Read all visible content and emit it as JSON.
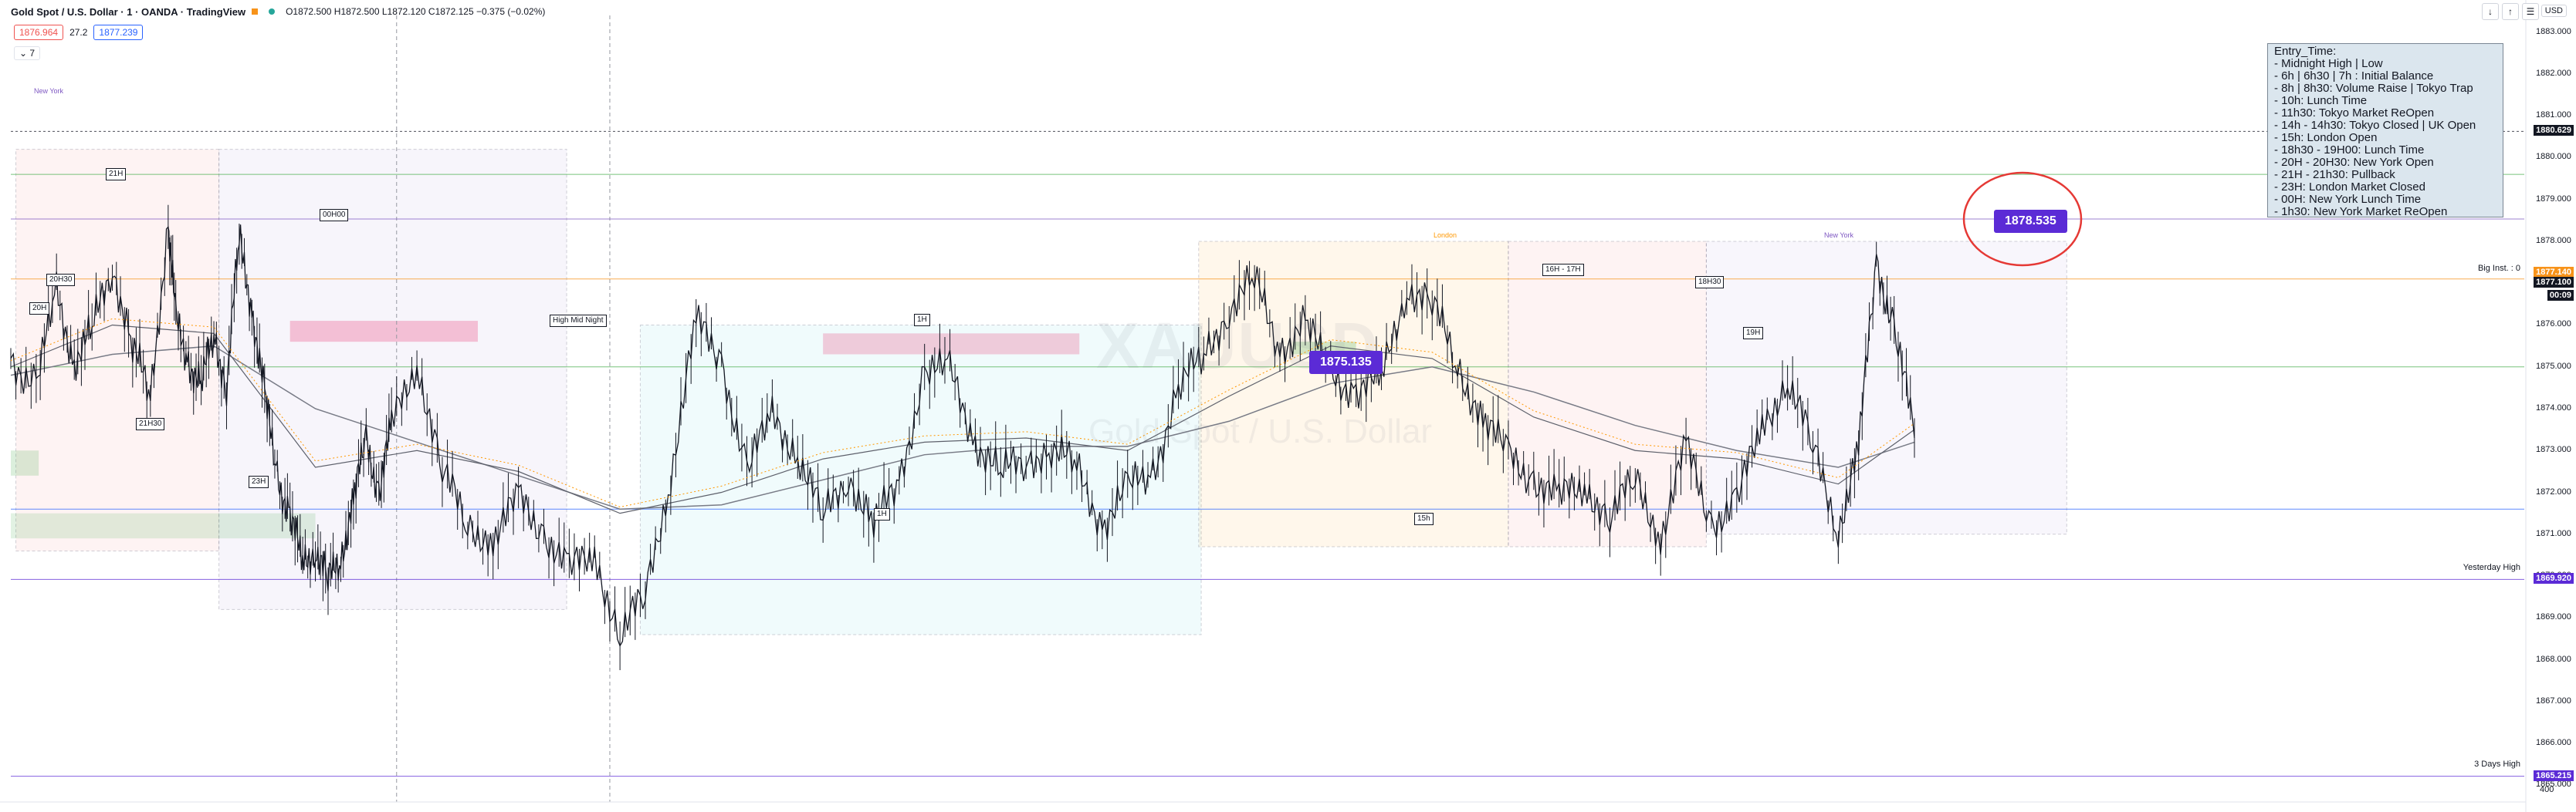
{
  "header": {
    "title": "Gold Spot / U.S. Dollar · 1 · OANDA · TradingView",
    "ohlc": "O1872.500 H1872.500 L1872.120 C1872.125 −0.375 (−0.02%)",
    "sell_price": "1876.964",
    "spread": "27.2",
    "buy_price": "1877.239",
    "indicators_toggle": "7",
    "currency": "USD",
    "buttons": [
      "↓",
      "↑",
      "☰"
    ]
  },
  "watermark": {
    "symbol": "XAUUSD",
    "name": "Gold Spot / U.S. Dollar"
  },
  "legend": {
    "lines": [
      "Entry_Time:",
      "- Midnight High | Low",
      "- 6h | 6h30 | 7h : Initial Balance",
      "- 8h | 8h30: Volume Raise | Tokyo Trap",
      "- 10h: Lunch Time",
      "- 11h30: Tokyo Market ReOpen",
      "- 14h - 14h30: Tokyo Closed | UK Open",
      "- 15h: London Open",
      "- 18h30 - 19H00: Lunch Time",
      "- 20H - 20H30: New York Open",
      "- 21H - 21h30: Pullback",
      "- 23H: London Market Closed",
      "- 00H: New York Lunch Time",
      "- 1h30: New York Market ReOpen"
    ]
  },
  "annotations": {
    "price_1878": "1878.535",
    "price_1875": "1875.135",
    "session_labels": [
      "21H",
      "20H30",
      "20H",
      "21H30",
      "23H",
      "00H00",
      "High Mid Night",
      "1H",
      "1H",
      "15h",
      "16H - 17H",
      "18H30",
      "19H"
    ],
    "session_titles": [
      "New York",
      "London",
      "New York"
    ]
  },
  "price_axis": {
    "ticks": [
      "1883.000",
      "1882.000",
      "1881.000",
      "1880.000",
      "1879.000",
      "1878.000",
      "1877.000",
      "1876.000",
      "1875.000",
      "1874.000",
      "1873.000",
      "1872.000",
      "1871.000",
      "1870.000",
      "1869.000",
      "1868.000",
      "1867.000",
      "1866.000",
      "1865.000"
    ],
    "labels": [
      {
        "text": "1880.629",
        "color": "#131722"
      },
      {
        "text": "1877.140",
        "color": "#f7931a"
      },
      {
        "text": "1877.100",
        "color": "#131722"
      },
      {
        "text": "00:09",
        "color": "#131722"
      },
      {
        "text": "1869.920",
        "color": "#5b2bd6"
      },
      {
        "text": "1865.215",
        "color": "#5b2bd6"
      }
    ],
    "line_names": [
      "Big Inst. : 0",
      "Yesterday High",
      "3 Days High"
    ],
    "bottom": "400"
  },
  "chart_data": {
    "type": "line",
    "title": "Gold Spot / U.S. Dollar · 1 · OANDA",
    "xlabel": "",
    "ylabel": "",
    "ylim": [
      1864.6,
      1883.4
    ],
    "x_range": [
      0,
      1000
    ],
    "price_series": {
      "x": [
        0,
        10,
        18,
        25,
        32,
        40,
        48,
        55,
        62,
        65,
        70,
        75,
        80,
        85,
        90,
        95,
        100,
        105,
        110,
        115,
        120,
        125,
        130,
        135,
        140,
        145,
        150,
        160,
        170,
        180,
        190,
        200,
        210,
        220,
        230,
        240,
        250,
        260,
        270,
        280,
        290,
        300,
        310,
        320,
        330,
        340,
        350,
        360,
        370,
        380,
        390,
        400,
        410,
        420,
        430,
        440,
        450,
        460,
        470,
        480,
        490,
        500,
        510,
        520,
        530,
        540,
        550,
        560,
        570,
        580,
        590,
        600,
        610,
        620,
        630,
        640,
        650,
        660,
        670,
        680,
        690,
        700,
        710,
        720,
        728,
        735,
        742,
        750
      ],
      "y": [
        1875.2,
        1874.6,
        1876.7,
        1875.2,
        1875.8,
        1877.5,
        1875.5,
        1874.2,
        1878.5,
        1876.0,
        1875.2,
        1874.5,
        1875.8,
        1874.6,
        1878.0,
        1876.5,
        1874.2,
        1872.4,
        1871.5,
        1870.2,
        1870.8,
        1869.8,
        1870.5,
        1871.8,
        1873.2,
        1872.1,
        1873.5,
        1875.2,
        1872.5,
        1871.2,
        1870.9,
        1871.8,
        1871.1,
        1870.1,
        1870.5,
        1868.6,
        1869.5,
        1872.5,
        1876.0,
        1875.2,
        1872.5,
        1873.8,
        1873.0,
        1871.3,
        1872.5,
        1871.2,
        1872.2,
        1875.0,
        1874.8,
        1873.3,
        1872.4,
        1872.8,
        1873.1,
        1872.5,
        1871.3,
        1872.0,
        1872.5,
        1874.5,
        1875.2,
        1876.5,
        1877.0,
        1875.5,
        1876.0,
        1874.8,
        1874.5,
        1874.6,
        1877.0,
        1876.5,
        1875.0,
        1873.8,
        1872.8,
        1872.4,
        1871.8,
        1872.2,
        1871.4,
        1872.3,
        1871.0,
        1873.0,
        1871.3,
        1871.8,
        1873.5,
        1874.8,
        1873.0,
        1871.2,
        1873.0,
        1877.5,
        1876.0,
        1873.3
      ]
    },
    "ema_series": {
      "x": [
        0,
        40,
        80,
        120,
        160,
        200,
        240,
        280,
        320,
        360,
        400,
        440,
        480,
        520,
        560,
        600,
        640,
        680,
        720,
        750
      ],
      "y": [
        1875.0,
        1876.0,
        1875.8,
        1872.6,
        1873.0,
        1872.5,
        1871.5,
        1872.0,
        1872.8,
        1873.2,
        1873.3,
        1873.0,
        1874.3,
        1875.5,
        1875.2,
        1873.8,
        1873.0,
        1872.8,
        1872.2,
        1873.5
      ]
    },
    "sma_series": {
      "x": [
        0,
        40,
        80,
        120,
        160,
        200,
        240,
        280,
        320,
        360,
        400,
        440,
        480,
        520,
        560,
        600,
        640,
        680,
        720,
        750
      ],
      "y": [
        1874.8,
        1875.3,
        1875.5,
        1874.0,
        1873.2,
        1872.4,
        1871.6,
        1871.7,
        1872.3,
        1872.9,
        1873.1,
        1873.1,
        1873.7,
        1874.6,
        1875.0,
        1874.4,
        1873.6,
        1873.0,
        1872.6,
        1873.2
      ]
    },
    "levels": [
      {
        "price": 1878.535,
        "color": "#7e57c2"
      },
      {
        "price": 1879.6,
        "color": "#4caf50"
      },
      {
        "price": 1877.1,
        "color": "#f7931a"
      },
      {
        "price": 1875.0,
        "color": "#4caf50"
      },
      {
        "price": 1871.6,
        "color": "#2962ff"
      },
      {
        "price": 1869.92,
        "color": "#5b2bd6"
      },
      {
        "price": 1865.215,
        "color": "#5b2bd6"
      },
      {
        "price": 1880.629,
        "color": "#131722"
      }
    ]
  }
}
